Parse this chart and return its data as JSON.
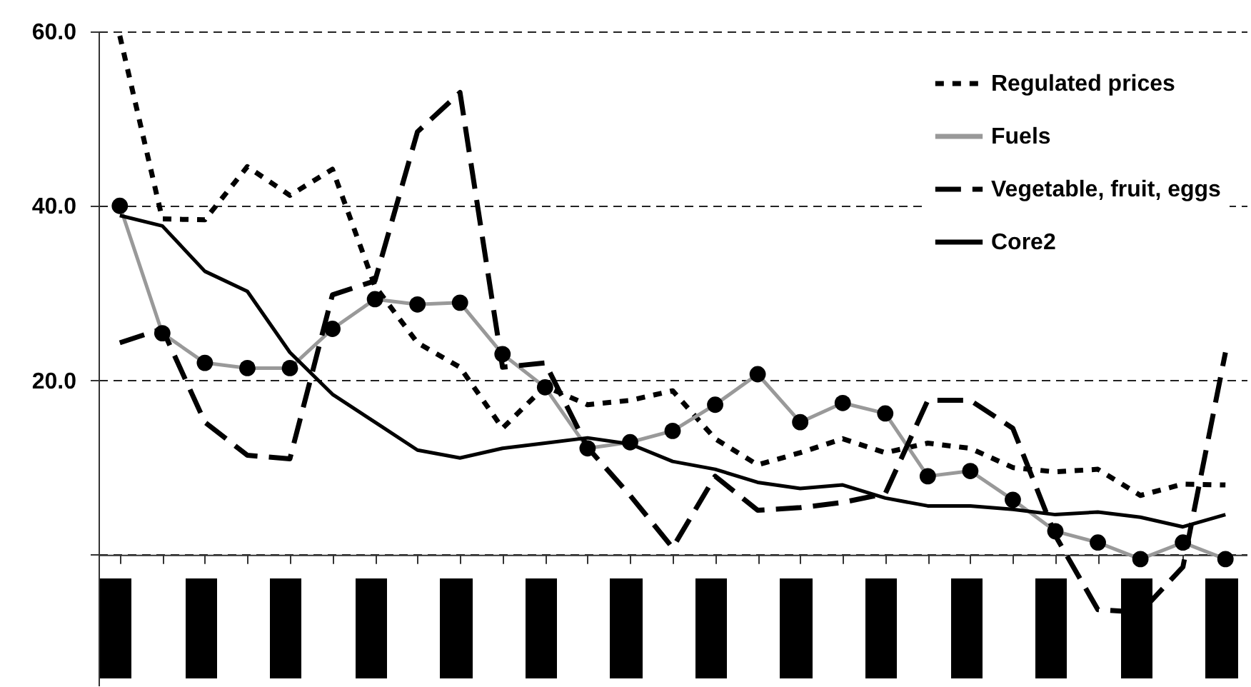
{
  "chart_data": {
    "type": "line",
    "categories": [
      null,
      null,
      null,
      null,
      null,
      null,
      null,
      null,
      null,
      null,
      null,
      null,
      null,
      null,
      null,
      null,
      null,
      null,
      null,
      null,
      null,
      null,
      null,
      null,
      null,
      null,
      null
    ],
    "series": [
      {
        "name": "Regulated prices",
        "color": "#000000",
        "line_style": "dotted",
        "values": [
          59.5,
          38.5,
          38.4,
          44.5,
          41.2,
          44.2,
          30.8,
          24.3,
          21.5,
          14.5,
          19.3,
          17.2,
          17.7,
          18.8,
          13.3,
          10.3,
          11.7,
          13.3,
          11.7,
          12.8,
          12.2,
          10.0,
          9.5,
          9.8,
          6.8,
          8.1,
          8.0
        ]
      },
      {
        "name": "Fuels",
        "color": "#999999",
        "line_style": "solid",
        "marker": "circle",
        "values": [
          40.0,
          25.4,
          22.0,
          21.4,
          21.4,
          25.9,
          29.3,
          28.7,
          28.9,
          23.0,
          19.2,
          12.2,
          12.9,
          14.2,
          17.2,
          20.7,
          15.2,
          17.4,
          16.2,
          9.0,
          9.6,
          6.3,
          2.7,
          1.4,
          -0.5,
          1.4,
          -0.5
        ]
      },
      {
        "name": "Vegetable, fruit, eggs",
        "color": "#000000",
        "line_style": "dashed",
        "values": [
          24.3,
          25.9,
          15.2,
          11.4,
          11.0,
          29.8,
          31.4,
          48.5,
          53.0,
          21.5,
          22.0,
          12.3,
          6.8,
          0.8,
          9.0,
          5.1,
          5.4,
          6.0,
          7.0,
          17.7,
          17.7,
          14.5,
          2.2,
          -6.3,
          -6.6,
          -1.4,
          23.2
        ]
      },
      {
        "name": "Core2",
        "color": "#000000",
        "line_style": "solid",
        "values": [
          38.9,
          37.7,
          32.5,
          30.2,
          23.2,
          18.4,
          15.2,
          12.0,
          11.1,
          12.2,
          12.8,
          13.4,
          12.7,
          10.7,
          9.8,
          8.3,
          7.6,
          8.0,
          6.5,
          5.6,
          5.6,
          5.2,
          4.6,
          4.9,
          4.3,
          3.2,
          4.6
        ]
      }
    ],
    "ylim": [
      -15,
      60
    ],
    "yticks": [
      {
        "value": 0,
        "label": null
      },
      {
        "value": 20,
        "label": "20.0"
      },
      {
        "value": 40,
        "label": "40.0"
      },
      {
        "value": 60,
        "label": "60.0"
      }
    ],
    "grid": "y",
    "legend": "top right",
    "tick_labels": "y"
  }
}
